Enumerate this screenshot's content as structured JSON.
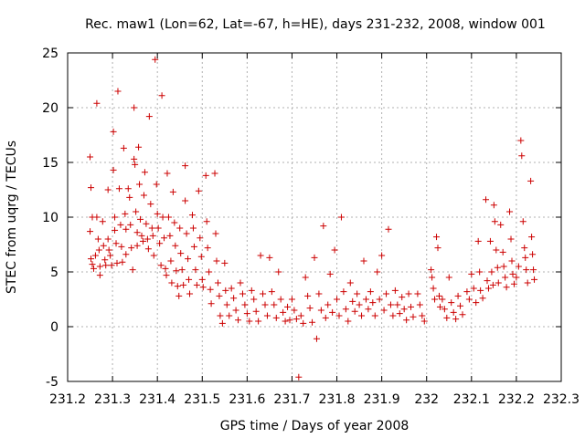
{
  "chart_data": {
    "type": "scatter",
    "title": "Rec. maw1 (Lon=62, Lat=-67, h=HE), days 231-232, 2008, window 001",
    "xlabel": "GPS time / Days of year 2008",
    "ylabel": "STEC from uqrg / TECUs",
    "xlim": [
      231.2,
      232.3
    ],
    "ylim": [
      -5,
      25
    ],
    "xticks": [
      "231.2",
      "231.3",
      "231.4",
      "231.5",
      "231.6",
      "231.7",
      "231.8",
      "231.9",
      "232",
      "232.1",
      "232.2",
      "232.3"
    ],
    "yticks": [
      "-5",
      "0",
      "5",
      "10",
      "15",
      "20",
      "25"
    ],
    "grid": true,
    "marker": "+",
    "marker_color": "#cc0000",
    "series": [
      {
        "points": [
          [
            231.25,
            15.5
          ],
          [
            231.252,
            12.7
          ],
          [
            231.255,
            10.0
          ],
          [
            231.25,
            8.7
          ],
          [
            231.252,
            6.2
          ],
          [
            231.255,
            5.7
          ],
          [
            231.258,
            5.3
          ],
          [
            231.262,
            6.5
          ],
          [
            231.265,
            20.4
          ],
          [
            231.265,
            10.0
          ],
          [
            231.268,
            8.0
          ],
          [
            231.27,
            7.0
          ],
          [
            231.272,
            5.5
          ],
          [
            231.272,
            4.7
          ],
          [
            231.278,
            9.6
          ],
          [
            231.28,
            7.4
          ],
          [
            231.283,
            6.1
          ],
          [
            231.285,
            5.6
          ],
          [
            231.29,
            12.5
          ],
          [
            231.29,
            8.0
          ],
          [
            231.292,
            7.0
          ],
          [
            231.295,
            6.5
          ],
          [
            231.298,
            5.6
          ],
          [
            231.302,
            17.8
          ],
          [
            231.302,
            14.3
          ],
          [
            231.305,
            10.0
          ],
          [
            231.305,
            8.8
          ],
          [
            231.308,
            7.6
          ],
          [
            231.31,
            5.8
          ],
          [
            231.312,
            21.5
          ],
          [
            231.315,
            12.6
          ],
          [
            231.318,
            9.3
          ],
          [
            231.32,
            7.3
          ],
          [
            231.322,
            5.9
          ],
          [
            231.325,
            16.3
          ],
          [
            231.328,
            10.3
          ],
          [
            231.33,
            8.9
          ],
          [
            231.33,
            6.6
          ],
          [
            231.335,
            12.6
          ],
          [
            231.338,
            11.8
          ],
          [
            231.34,
            9.3
          ],
          [
            231.342,
            7.2
          ],
          [
            231.345,
            5.2
          ],
          [
            231.348,
            20.0
          ],
          [
            231.348,
            15.3
          ],
          [
            231.35,
            14.8
          ],
          [
            231.352,
            10.5
          ],
          [
            231.355,
            8.6
          ],
          [
            231.355,
            7.4
          ],
          [
            231.358,
            16.4
          ],
          [
            231.36,
            13.0
          ],
          [
            231.362,
            9.8
          ],
          [
            231.365,
            8.3
          ],
          [
            231.368,
            7.8
          ],
          [
            231.37,
            12.0
          ],
          [
            231.372,
            14.1
          ],
          [
            231.375,
            9.4
          ],
          [
            231.378,
            8.0
          ],
          [
            231.38,
            7.1
          ],
          [
            231.382,
            19.2
          ],
          [
            231.385,
            11.2
          ],
          [
            231.388,
            9.0
          ],
          [
            231.39,
            8.3
          ],
          [
            231.392,
            6.5
          ],
          [
            231.395,
            24.4
          ],
          [
            231.398,
            13.0
          ],
          [
            231.4,
            10.3
          ],
          [
            231.402,
            9.0
          ],
          [
            231.405,
            7.6
          ],
          [
            231.408,
            5.6
          ],
          [
            231.41,
            21.1
          ],
          [
            231.412,
            10.0
          ],
          [
            231.415,
            8.1
          ],
          [
            231.418,
            5.3
          ],
          [
            231.42,
            4.7
          ],
          [
            231.422,
            14.0
          ],
          [
            231.425,
            10.0
          ],
          [
            231.428,
            8.3
          ],
          [
            231.43,
            6.0
          ],
          [
            231.432,
            4.0
          ],
          [
            231.435,
            12.3
          ],
          [
            231.438,
            9.5
          ],
          [
            231.44,
            7.4
          ],
          [
            231.442,
            5.1
          ],
          [
            231.445,
            3.7
          ],
          [
            231.448,
            2.8
          ],
          [
            231.45,
            9.0
          ],
          [
            231.452,
            6.7
          ],
          [
            231.455,
            5.2
          ],
          [
            231.458,
            3.8
          ],
          [
            231.462,
            14.7
          ],
          [
            231.462,
            11.5
          ],
          [
            231.465,
            8.5
          ],
          [
            231.468,
            6.2
          ],
          [
            231.47,
            4.3
          ],
          [
            231.472,
            3.0
          ],
          [
            231.478,
            10.2
          ],
          [
            231.48,
            9.0
          ],
          [
            231.482,
            7.3
          ],
          [
            231.485,
            5.2
          ],
          [
            231.488,
            3.8
          ],
          [
            231.492,
            12.4
          ],
          [
            231.495,
            8.1
          ],
          [
            231.498,
            6.4
          ],
          [
            231.5,
            4.3
          ],
          [
            231.502,
            3.6
          ],
          [
            231.508,
            13.8
          ],
          [
            231.51,
            9.6
          ],
          [
            231.512,
            7.2
          ],
          [
            231.515,
            5.0
          ],
          [
            231.518,
            3.4
          ],
          [
            231.52,
            2.1
          ],
          [
            231.528,
            14.0
          ],
          [
            231.53,
            8.5
          ],
          [
            231.532,
            6.0
          ],
          [
            231.535,
            4.0
          ],
          [
            231.538,
            2.8
          ],
          [
            231.54,
            1.0
          ],
          [
            231.545,
            0.3
          ],
          [
            231.55,
            5.8
          ],
          [
            231.552,
            3.3
          ],
          [
            231.555,
            2.0
          ],
          [
            231.56,
            1.0
          ],
          [
            231.565,
            3.5
          ],
          [
            231.57,
            2.6
          ],
          [
            231.575,
            1.5
          ],
          [
            231.58,
            0.6
          ],
          [
            231.585,
            4.0
          ],
          [
            231.59,
            3.0
          ],
          [
            231.595,
            2.0
          ],
          [
            231.6,
            1.2
          ],
          [
            231.605,
            0.5
          ],
          [
            231.61,
            3.3
          ],
          [
            231.615,
            2.5
          ],
          [
            231.62,
            1.4
          ],
          [
            231.625,
            0.5
          ],
          [
            231.63,
            6.5
          ],
          [
            231.635,
            3.0
          ],
          [
            231.64,
            2.0
          ],
          [
            231.645,
            1.0
          ],
          [
            231.65,
            6.3
          ],
          [
            231.655,
            3.2
          ],
          [
            231.66,
            2.0
          ],
          [
            231.665,
            0.8
          ],
          [
            231.67,
            5.0
          ],
          [
            231.675,
            2.5
          ],
          [
            231.68,
            1.3
          ],
          [
            231.685,
            0.5
          ],
          [
            231.69,
            1.8
          ],
          [
            231.695,
            0.6
          ],
          [
            231.7,
            2.5
          ],
          [
            231.705,
            1.5
          ],
          [
            231.71,
            0.7
          ],
          [
            231.715,
            -4.6
          ],
          [
            231.72,
            1.0
          ],
          [
            231.725,
            0.3
          ],
          [
            231.73,
            4.5
          ],
          [
            231.735,
            2.8
          ],
          [
            231.74,
            1.7
          ],
          [
            231.745,
            0.4
          ],
          [
            231.75,
            6.3
          ],
          [
            231.755,
            -1.1
          ],
          [
            231.76,
            3.0
          ],
          [
            231.765,
            1.5
          ],
          [
            231.77,
            9.2
          ],
          [
            231.775,
            0.8
          ],
          [
            231.78,
            2.0
          ],
          [
            231.785,
            4.8
          ],
          [
            231.79,
            1.3
          ],
          [
            231.795,
            7.0
          ],
          [
            231.8,
            2.5
          ],
          [
            231.805,
            1.0
          ],
          [
            231.81,
            10.0
          ],
          [
            231.815,
            3.2
          ],
          [
            231.82,
            1.6
          ],
          [
            231.825,
            0.5
          ],
          [
            231.83,
            4.0
          ],
          [
            231.835,
            2.3
          ],
          [
            231.84,
            1.4
          ],
          [
            231.845,
            3.0
          ],
          [
            231.85,
            2.0
          ],
          [
            231.855,
            1.0
          ],
          [
            231.86,
            6.0
          ],
          [
            231.865,
            2.5
          ],
          [
            231.87,
            1.6
          ],
          [
            231.875,
            3.2
          ],
          [
            231.88,
            2.2
          ],
          [
            231.885,
            1.0
          ],
          [
            231.89,
            5.0
          ],
          [
            231.895,
            2.5
          ],
          [
            231.9,
            6.5
          ],
          [
            231.905,
            1.5
          ],
          [
            231.91,
            3.0
          ],
          [
            231.915,
            8.9
          ],
          [
            231.92,
            2.0
          ],
          [
            231.925,
            1.0
          ],
          [
            231.93,
            3.3
          ],
          [
            231.935,
            2.0
          ],
          [
            231.94,
            1.2
          ],
          [
            231.945,
            2.7
          ],
          [
            231.95,
            1.6
          ],
          [
            231.955,
            0.6
          ],
          [
            231.96,
            3.0
          ],
          [
            231.965,
            1.8
          ],
          [
            231.97,
            0.9
          ],
          [
            231.98,
            3.0
          ],
          [
            231.985,
            2.0
          ],
          [
            231.99,
            1.0
          ],
          [
            231.995,
            0.5
          ],
          [
            232.01,
            5.2
          ],
          [
            232.012,
            4.5
          ],
          [
            232.015,
            3.5
          ],
          [
            232.018,
            2.5
          ],
          [
            232.022,
            8.2
          ],
          [
            232.025,
            7.2
          ],
          [
            232.028,
            2.8
          ],
          [
            232.03,
            1.8
          ],
          [
            232.035,
            2.5
          ],
          [
            232.04,
            1.6
          ],
          [
            232.045,
            0.8
          ],
          [
            232.05,
            4.5
          ],
          [
            232.055,
            2.2
          ],
          [
            232.06,
            1.3
          ],
          [
            232.065,
            0.7
          ],
          [
            232.07,
            2.8
          ],
          [
            232.075,
            1.9
          ],
          [
            232.08,
            1.1
          ],
          [
            232.09,
            3.2
          ],
          [
            232.095,
            2.5
          ],
          [
            232.1,
            4.8
          ],
          [
            232.105,
            3.5
          ],
          [
            232.11,
            2.2
          ],
          [
            232.115,
            7.8
          ],
          [
            232.118,
            5.0
          ],
          [
            232.12,
            3.3
          ],
          [
            232.125,
            2.6
          ],
          [
            232.132,
            11.6
          ],
          [
            232.135,
            4.2
          ],
          [
            232.138,
            3.5
          ],
          [
            232.142,
            7.8
          ],
          [
            232.145,
            5.0
          ],
          [
            232.148,
            3.8
          ],
          [
            232.15,
            11.1
          ],
          [
            232.152,
            9.6
          ],
          [
            232.155,
            7.0
          ],
          [
            232.158,
            5.4
          ],
          [
            232.16,
            4.0
          ],
          [
            232.165,
            9.3
          ],
          [
            232.17,
            6.8
          ],
          [
            232.172,
            5.5
          ],
          [
            232.175,
            4.5
          ],
          [
            232.178,
            3.6
          ],
          [
            232.185,
            10.5
          ],
          [
            232.188,
            8.0
          ],
          [
            232.19,
            6.0
          ],
          [
            232.192,
            4.8
          ],
          [
            232.195,
            3.9
          ],
          [
            232.2,
            4.5
          ],
          [
            232.205,
            5.5
          ],
          [
            232.21,
            17.0
          ],
          [
            232.212,
            15.6
          ],
          [
            232.215,
            9.6
          ],
          [
            232.218,
            7.2
          ],
          [
            232.22,
            6.3
          ],
          [
            232.222,
            5.2
          ],
          [
            232.225,
            4.0
          ],
          [
            232.232,
            13.3
          ],
          [
            232.234,
            8.2
          ],
          [
            232.236,
            6.6
          ],
          [
            232.238,
            5.2
          ],
          [
            232.24,
            4.3
          ]
        ]
      }
    ]
  }
}
